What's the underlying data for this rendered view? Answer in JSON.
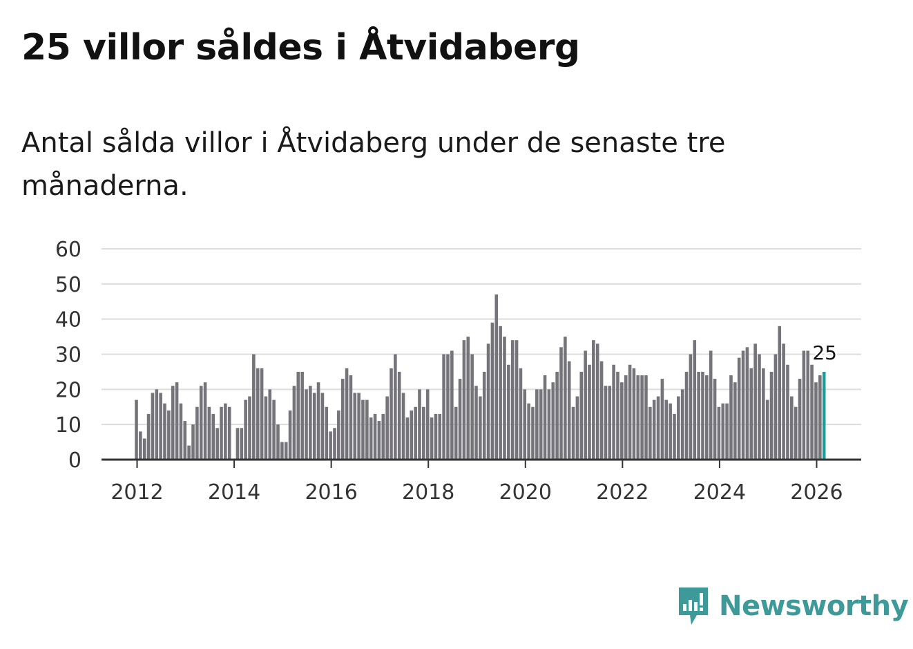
{
  "title": "25 villor såldes i Åtvidaberg",
  "subtitle": "Antal sålda villor i Åtvidaberg under de senaste tre månaderna.",
  "brand": {
    "name": "Newsworthy",
    "color": "#3e9a98",
    "icon": "newsworthy-logo-icon"
  },
  "colors": {
    "bar": "#75747a",
    "highlight": "#1a9e99",
    "grid": "#dddddd",
    "axis": "#333333"
  },
  "chart_data": {
    "type": "bar",
    "title": "25 villor såldes i Åtvidaberg",
    "xlabel": "",
    "ylabel": "",
    "ylim": [
      0,
      60
    ],
    "yticks": [
      "0",
      "10",
      "20",
      "30",
      "40",
      "50",
      "60"
    ],
    "xticks": [
      "2012",
      "2014",
      "2016",
      "2018",
      "2020",
      "2022",
      "2024",
      "2026"
    ],
    "start": "2012-01",
    "frequency": "monthly",
    "highlight_label": "25",
    "values": [
      17,
      8,
      6,
      13,
      19,
      20,
      19,
      16,
      14,
      21,
      22,
      16,
      11,
      4,
      10,
      15,
      21,
      22,
      15,
      13,
      9,
      15,
      16,
      15,
      0,
      9,
      9,
      17,
      18,
      30,
      26,
      26,
      18,
      20,
      17,
      10,
      5,
      5,
      14,
      21,
      25,
      25,
      20,
      21,
      19,
      22,
      19,
      15,
      8,
      9,
      14,
      23,
      26,
      24,
      19,
      19,
      17,
      17,
      12,
      13,
      11,
      13,
      18,
      26,
      30,
      25,
      19,
      12,
      14,
      15,
      20,
      15,
      20,
      12,
      13,
      13,
      30,
      30,
      31,
      15,
      23,
      34,
      35,
      30,
      21,
      18,
      25,
      33,
      39,
      47,
      38,
      35,
      27,
      34,
      34,
      26,
      20,
      16,
      15,
      20,
      20,
      24,
      20,
      22,
      25,
      32,
      35,
      28,
      15,
      18,
      25,
      31,
      27,
      34,
      33,
      28,
      21,
      21,
      27,
      25,
      22,
      24,
      27,
      26,
      24,
      24,
      24,
      15,
      17,
      18,
      23,
      17,
      16,
      13,
      18,
      20,
      25,
      30,
      34,
      25,
      25,
      24,
      31,
      23,
      15,
      16,
      16,
      24,
      22,
      29,
      31,
      32,
      26,
      33,
      30,
      26,
      17,
      25,
      30,
      38,
      33,
      27,
      18,
      15,
      23,
      31,
      31,
      27,
      22,
      24,
      25
    ]
  }
}
